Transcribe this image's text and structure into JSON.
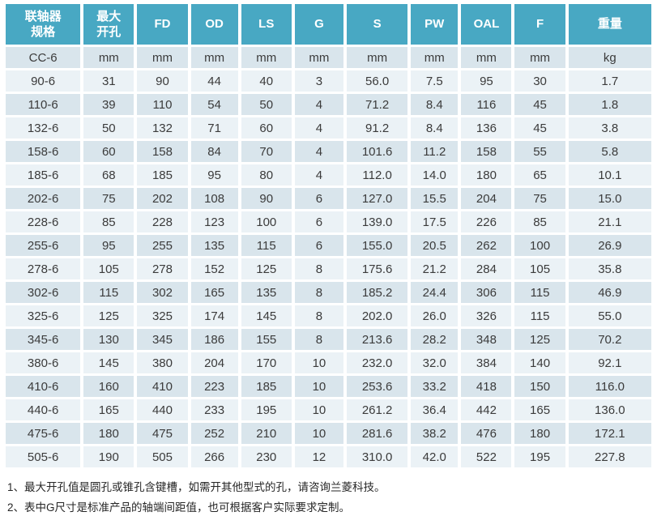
{
  "colors": {
    "header_bg": "#48a8c3",
    "row_dark": "#d9e5ec",
    "row_light": "#ebf2f6",
    "header_text": "#ffffff",
    "body_text": "#3b3b3b"
  },
  "table": {
    "headers": [
      "联轴器\n规格",
      "最大\n开孔",
      "FD",
      "OD",
      "LS",
      "G",
      "S",
      "PW",
      "OAL",
      "F",
      "重量"
    ],
    "units_row": [
      "CC-6",
      "mm",
      "mm",
      "mm",
      "mm",
      "mm",
      "mm",
      "mm",
      "mm",
      "mm",
      "kg"
    ],
    "rows": [
      [
        "90-6",
        "31",
        "90",
        "44",
        "40",
        "3",
        "56.0",
        "7.5",
        "95",
        "30",
        "1.7"
      ],
      [
        "110-6",
        "39",
        "110",
        "54",
        "50",
        "4",
        "71.2",
        "8.4",
        "116",
        "45",
        "1.8"
      ],
      [
        "132-6",
        "50",
        "132",
        "71",
        "60",
        "4",
        "91.2",
        "8.4",
        "136",
        "45",
        "3.8"
      ],
      [
        "158-6",
        "60",
        "158",
        "84",
        "70",
        "4",
        "101.6",
        "11.2",
        "158",
        "55",
        "5.8"
      ],
      [
        "185-6",
        "68",
        "185",
        "95",
        "80",
        "4",
        "112.0",
        "14.0",
        "180",
        "65",
        "10.1"
      ],
      [
        "202-6",
        "75",
        "202",
        "108",
        "90",
        "6",
        "127.0",
        "15.5",
        "204",
        "75",
        "15.0"
      ],
      [
        "228-6",
        "85",
        "228",
        "123",
        "100",
        "6",
        "139.0",
        "17.5",
        "226",
        "85",
        "21.1"
      ],
      [
        "255-6",
        "95",
        "255",
        "135",
        "115",
        "6",
        "155.0",
        "20.5",
        "262",
        "100",
        "26.9"
      ],
      [
        "278-6",
        "105",
        "278",
        "152",
        "125",
        "8",
        "175.6",
        "21.2",
        "284",
        "105",
        "35.8"
      ],
      [
        "302-6",
        "115",
        "302",
        "165",
        "135",
        "8",
        "185.2",
        "24.4",
        "306",
        "115",
        "46.9"
      ],
      [
        "325-6",
        "125",
        "325",
        "174",
        "145",
        "8",
        "202.0",
        "26.0",
        "326",
        "115",
        "55.0"
      ],
      [
        "345-6",
        "130",
        "345",
        "186",
        "155",
        "8",
        "213.6",
        "28.2",
        "348",
        "125",
        "70.2"
      ],
      [
        "380-6",
        "145",
        "380",
        "204",
        "170",
        "10",
        "232.0",
        "32.0",
        "384",
        "140",
        "92.1"
      ],
      [
        "410-6",
        "160",
        "410",
        "223",
        "185",
        "10",
        "253.6",
        "33.2",
        "418",
        "150",
        "116.0"
      ],
      [
        "440-6",
        "165",
        "440",
        "233",
        "195",
        "10",
        "261.2",
        "36.4",
        "442",
        "165",
        "136.0"
      ],
      [
        "475-6",
        "180",
        "475",
        "252",
        "210",
        "10",
        "281.6",
        "38.2",
        "476",
        "180",
        "172.1"
      ],
      [
        "505-6",
        "190",
        "505",
        "266",
        "230",
        "12",
        "310.0",
        "42.0",
        "522",
        "195",
        "227.8"
      ]
    ]
  },
  "footnotes": [
    "1、最大开孔值是圆孔或锥孔含键槽，如需开其他型式的孔，请咨询兰菱科技。",
    "2、表中G尺寸是标准产品的轴端间距值，也可根据客户实际要求定制。"
  ]
}
